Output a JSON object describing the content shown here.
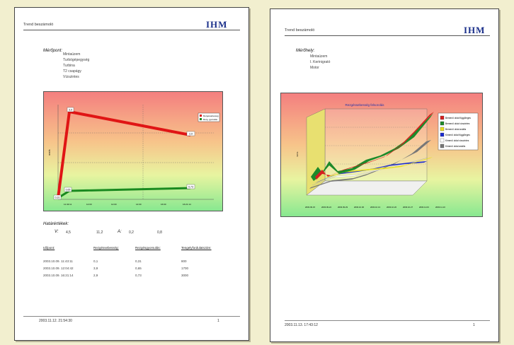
{
  "page1": {
    "header_title": "Trend beszámoló",
    "logo": "IHM",
    "meropont_label": "Mérőpont:",
    "meropont_items": [
      "Mintaüzem",
      "Turbógépegység",
      "Turbina",
      "T2 csapágy",
      "Vízszintes"
    ],
    "chart": {
      "legend": [
        "Rezgéssebesség",
        "Rezg. gyorsulás"
      ],
      "point_labels": [
        "3,9",
        "2,9",
        "0,31",
        "0,65",
        "0,73"
      ],
      "x_ticks": [
        "11:43:11",
        "12:00",
        "12:00",
        "14:00",
        "16:00",
        "16:21:14"
      ],
      "ylabel": "mm/s"
    },
    "limits_label": "Határértékek:",
    "limits": {
      "v_label": "V:",
      "v1": "4,5",
      "v2": "11,2",
      "a_label": "A:",
      "a1": "0,2",
      "a2": "0,8"
    },
    "table": {
      "headers": [
        "Időpont:",
        "Rezgéssebesség:",
        "Rezgésgyorsulás:",
        "Tengelyfordulatszám:"
      ],
      "rows": [
        [
          "2003.10.09. 11:43:11",
          "0,1",
          "0,31",
          "800"
        ],
        [
          "2003.10.09. 12:04:42",
          "3,9",
          "0,65",
          "1700"
        ],
        [
          "2003.10.09. 16:21:14",
          "2,9",
          "0,73",
          "3000"
        ]
      ]
    },
    "footer_date": "2003.11.12. 21:54:30",
    "footer_page": "1"
  },
  "page2": {
    "header_title": "Trend beszámoló",
    "logo": "IHM",
    "merohely_label": "Mérőhely:",
    "merohely_items": [
      "Mintaüzem",
      "I. Kerinigrató",
      "Motor"
    ],
    "chart": {
      "title": "Rezgéssebesség felsorolás",
      "legend": [
        {
          "label": "Bemenő oldal függőleges",
          "color": "#d42020"
        },
        {
          "label": "Bemenő oldal vízszintes",
          "color": "#1d8a2a"
        },
        {
          "label": "Bemenő oldal axiális",
          "color": "#e8e020"
        },
        {
          "label": "Kimenő oldal függőleges",
          "color": "#1a2ad0"
        },
        {
          "label": "Kimenő oldal vízszintes",
          "color": "#ffffff"
        },
        {
          "label": "Kimenő oldal axiális",
          "color": "#777777"
        }
      ],
      "ylabel": "mm/s",
      "x_ticks": [
        "2003.09.15",
        "2003.09.22",
        "2003.09.29",
        "2003.10.06",
        "2003.10.13",
        "2003.10.20",
        "2003.10.27",
        "2003.11.03",
        "2003.11.10"
      ]
    },
    "footer_date": "2003.11.13. 17:43:12",
    "footer_page": "1"
  }
}
